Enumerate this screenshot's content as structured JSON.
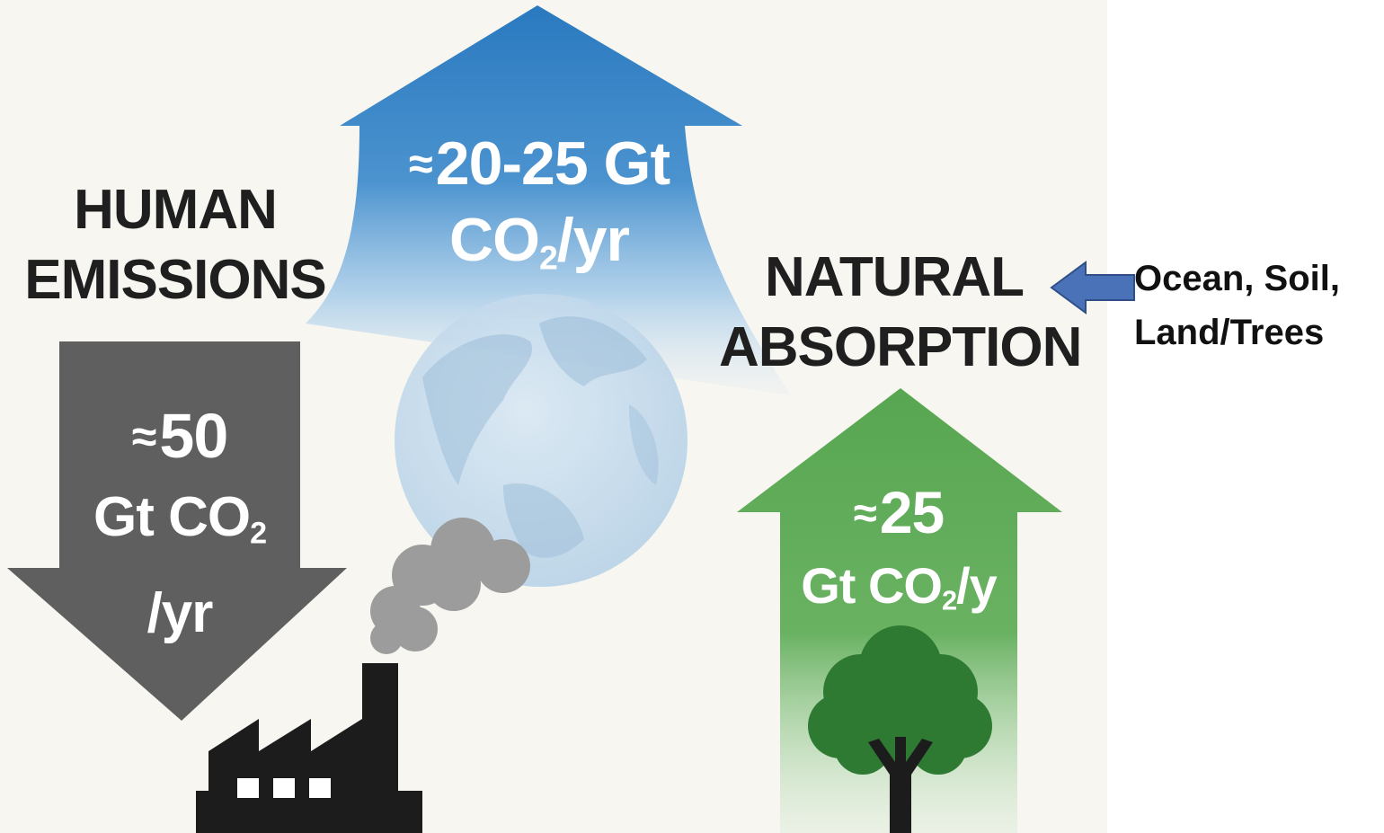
{
  "human": {
    "heading_line1": "HUMAN",
    "heading_line2": "EMISSIONS",
    "approx": "≈",
    "amount": "50",
    "unit_prefix": "Gt CO",
    "unit_sub": "2",
    "unit_suffix": "/yr"
  },
  "atmosphere": {
    "approx": "≈",
    "amount": "20-25 Gt",
    "unit_prefix": "CO",
    "unit_sub": "2",
    "unit_suffix": "/yr"
  },
  "natural": {
    "heading_line1": "NATURAL",
    "heading_line2": "ABSORPTION",
    "approx": "≈",
    "amount": "25",
    "unit_prefix": "Gt CO",
    "unit_sub": "2",
    "unit_suffix": "/y"
  },
  "sinks": {
    "line1": "Ocean, Soil,",
    "line2": "Land/Trees"
  },
  "colors": {
    "panel_bg": "#f7f6f1",
    "emissions_arrow": "#5f5f5f",
    "atmosphere_arrow": "#2e7cc0",
    "absorption_arrow": "#5aa553",
    "tree": "#2f7a32",
    "factory": "#1c1c1c",
    "smoke": "#9c9c9c",
    "pointer_arrow": "#4a72b8"
  },
  "icons": [
    "globe-icon",
    "factory-icon",
    "smoke-icon",
    "tree-icon",
    "pointer-arrow-icon"
  ]
}
